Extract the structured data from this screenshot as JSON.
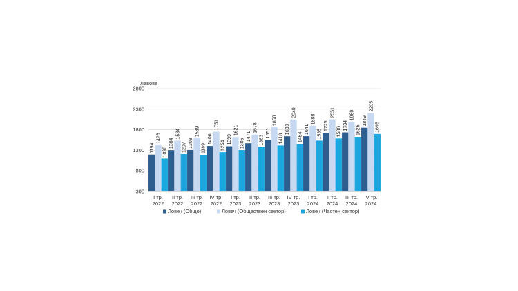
{
  "chart_data": {
    "type": "bar",
    "ylabel": "Левове",
    "ylim": [
      300,
      2800
    ],
    "yticks": [
      300,
      800,
      1300,
      1800,
      2300,
      2800
    ],
    "grid": true,
    "legend_position": "bottom",
    "categories": [
      [
        "I тр.",
        "2022"
      ],
      [
        "II тр.",
        "2022"
      ],
      [
        "III тр.",
        "2022"
      ],
      [
        "IV тр.",
        "2022"
      ],
      [
        "I тр.",
        "2023"
      ],
      [
        "II тр.",
        "2023"
      ],
      [
        "III тр.",
        "2023"
      ],
      [
        "IV тр.",
        "2023"
      ],
      [
        "I тр.",
        "2024"
      ],
      [
        "II тр.",
        "2024"
      ],
      [
        "III тр.",
        "2024"
      ],
      [
        "IV тр.",
        "2024"
      ]
    ],
    "series": [
      {
        "name": "Ловеч (Общо)",
        "color": "#2e5d8f",
        "values": [
          1194,
          1304,
          1308,
          1406,
          1399,
          1471,
          1551,
          1639,
          1641,
          1725,
          1734,
          1849
        ]
      },
      {
        "name": "Ловеч (Обществен сектор)",
        "color": "#c6d9f1",
        "values": [
          1426,
          1534,
          1589,
          1751,
          1621,
          1678,
          1858,
          2049,
          1888,
          2051,
          1989,
          2205
        ]
      },
      {
        "name": "Ловеч (Частен сектор)",
        "color": "#1ba6df",
        "values": [
          1098,
          1207,
          1189,
          1254,
          1305,
          1383,
          1418,
          1454,
          1535,
          1586,
          1625,
          1695
        ]
      }
    ]
  }
}
